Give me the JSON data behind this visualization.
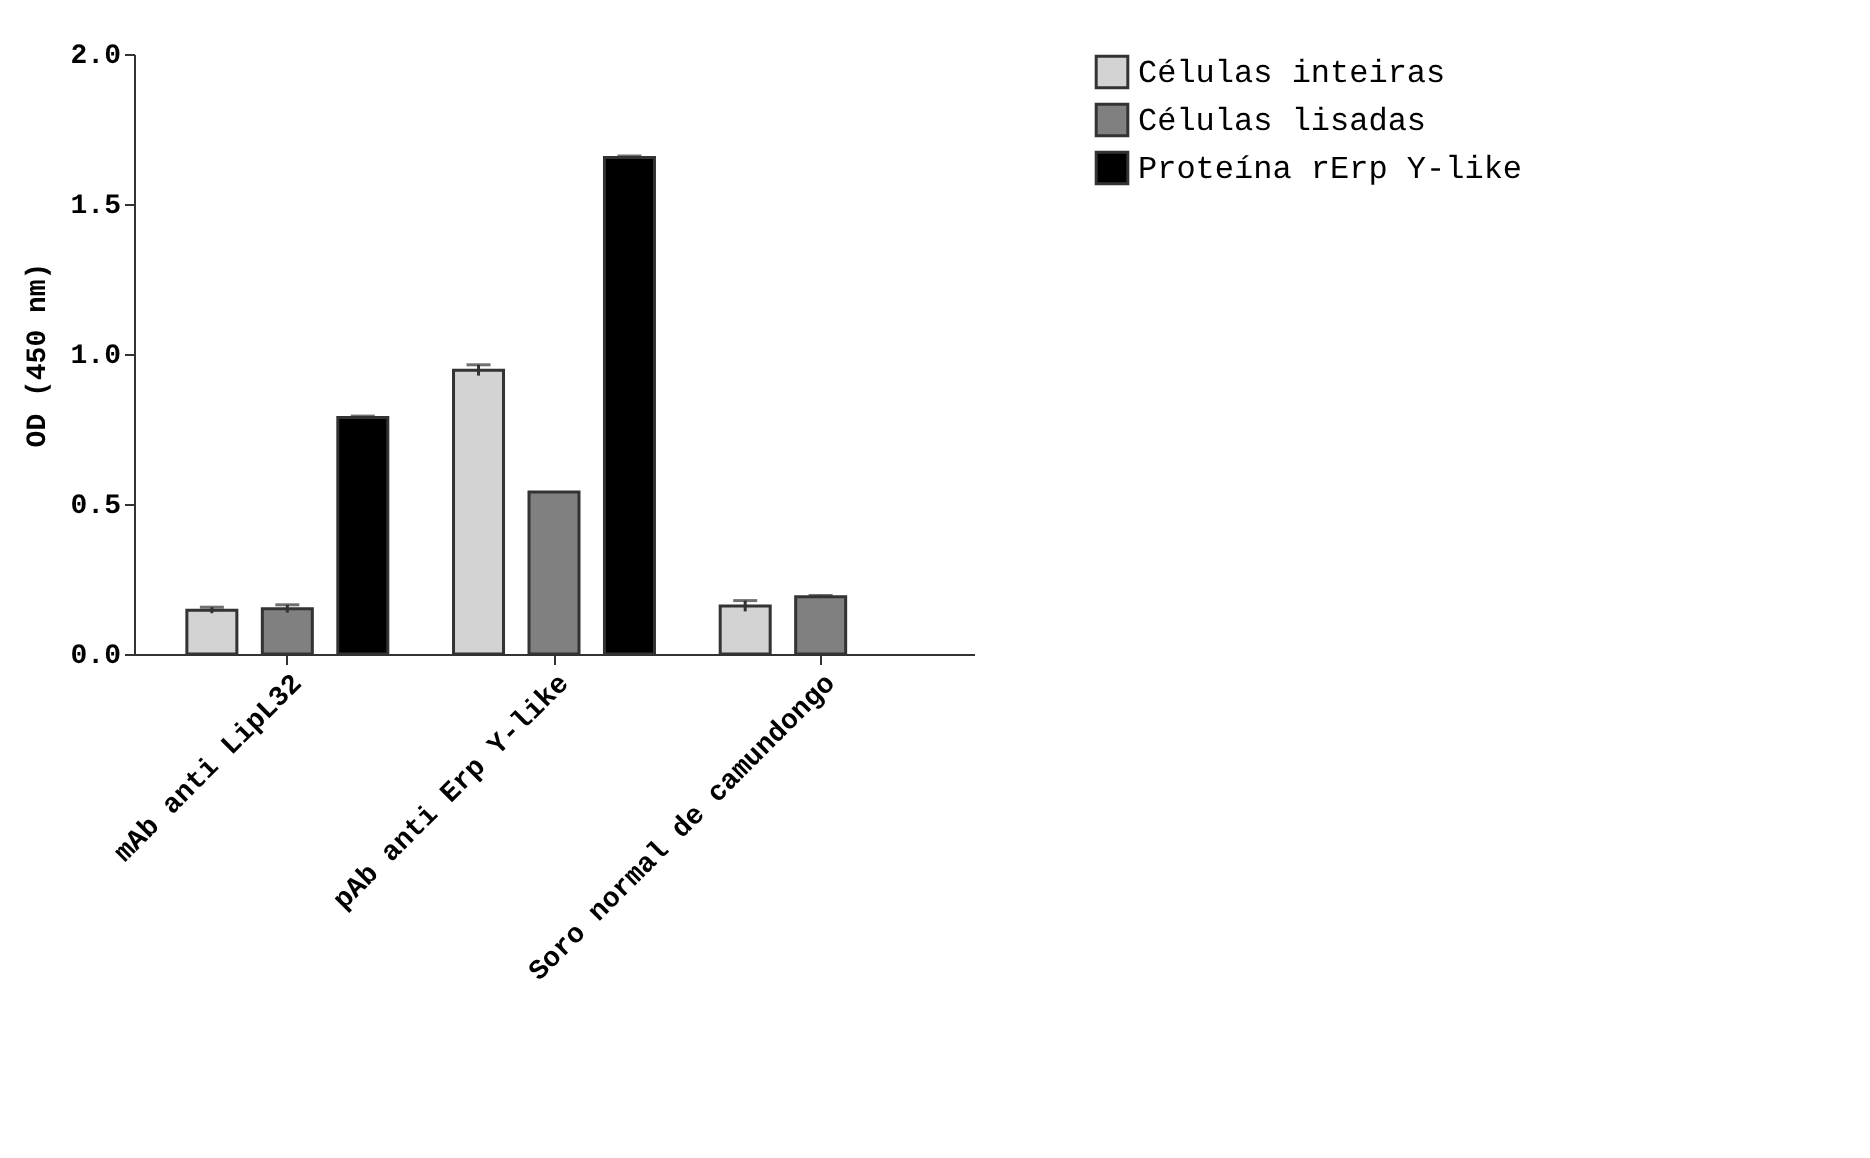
{
  "chart_data": {
    "type": "bar",
    "ylabel": "OD (450 nm)",
    "categories": [
      "mAb anti LipL32",
      "pAb anti Erp Y-like",
      "Soro normal de camundongo"
    ],
    "series": [
      {
        "name": "Células inteiras",
        "color": "#d3d3d3",
        "values": [
          0.146,
          0.946,
          0.16
        ],
        "errors": [
          0.01,
          0.018,
          0.018
        ]
      },
      {
        "name": "Células lisadas",
        "color": "#808080",
        "values": [
          0.151,
          0.54,
          0.191
        ],
        "errors": [
          0.013,
          null,
          0.004
        ]
      },
      {
        "name": "Proteína rErp Y-like",
        "color": "#000000",
        "values": [
          0.788,
          1.655,
          null
        ],
        "errors": [
          0.005,
          0.005,
          null
        ]
      }
    ],
    "ylim": [
      0,
      2.0
    ],
    "yticks": [
      {
        "value": 0,
        "label": "0.0"
      },
      {
        "value": 0.5,
        "label": "0.5"
      },
      {
        "value": 1.0,
        "label": "1.0"
      },
      {
        "value": 1.5,
        "label": "1.5"
      },
      {
        "value": 2.0,
        "label": "2.0"
      }
    ],
    "grid": false,
    "legend": "top right"
  }
}
